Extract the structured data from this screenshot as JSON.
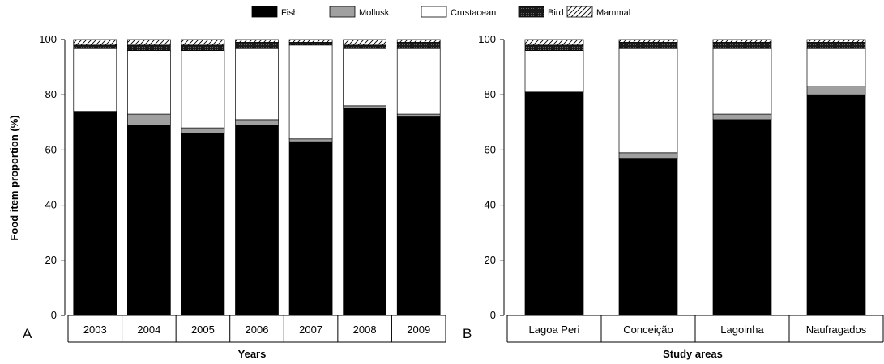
{
  "legend": [
    {
      "name": "Fish",
      "fill": "#000000",
      "pattern": "solid"
    },
    {
      "name": "Mollusk",
      "fill": "#a0a0a0",
      "pattern": "solid"
    },
    {
      "name": "Crustacean",
      "fill": "#ffffff",
      "pattern": "solid"
    },
    {
      "name": "Bird",
      "fill": "#2b2b2b",
      "pattern": "dots"
    },
    {
      "name": "Mammal",
      "fill": "#ffffff",
      "pattern": "hatch"
    }
  ],
  "chart_data": [
    {
      "type": "bar",
      "stacked": true,
      "panel_label": "A",
      "xlabel": "Years",
      "ylabel": "Food item proportion (%)",
      "ylim": [
        0,
        100
      ],
      "yticks": [
        0,
        20,
        40,
        60,
        80,
        100
      ],
      "categories": [
        "2003",
        "2004",
        "2005",
        "2006",
        "2007",
        "2008",
        "2009"
      ],
      "series": [
        {
          "name": "Fish",
          "values": [
            74,
            69,
            66,
            69,
            63,
            75,
            72
          ]
        },
        {
          "name": "Mollusk",
          "values": [
            0,
            4,
            2,
            2,
            1,
            1,
            1
          ]
        },
        {
          "name": "Crustacean",
          "values": [
            23,
            23,
            28,
            26,
            34,
            21,
            24
          ]
        },
        {
          "name": "Bird",
          "values": [
            1,
            2,
            2,
            2,
            1,
            1,
            2
          ]
        },
        {
          "name": "Mammal",
          "values": [
            2,
            2,
            2,
            1,
            1,
            2,
            1
          ]
        }
      ]
    },
    {
      "type": "bar",
      "stacked": true,
      "panel_label": "B",
      "xlabel": "Study areas",
      "ylabel": "",
      "ylim": [
        0,
        100
      ],
      "yticks": [
        0,
        20,
        40,
        60,
        80,
        100
      ],
      "categories": [
        "Lagoa Peri",
        "Conceição",
        "Lagoinha",
        "Naufragados"
      ],
      "series": [
        {
          "name": "Fish",
          "values": [
            81,
            57,
            71,
            80
          ]
        },
        {
          "name": "Mollusk",
          "values": [
            0,
            2,
            2,
            3
          ]
        },
        {
          "name": "Crustacean",
          "values": [
            15,
            38,
            24,
            14
          ]
        },
        {
          "name": "Bird",
          "values": [
            2,
            2,
            2,
            2
          ]
        },
        {
          "name": "Mammal",
          "values": [
            2,
            1,
            1,
            1
          ]
        }
      ]
    }
  ]
}
